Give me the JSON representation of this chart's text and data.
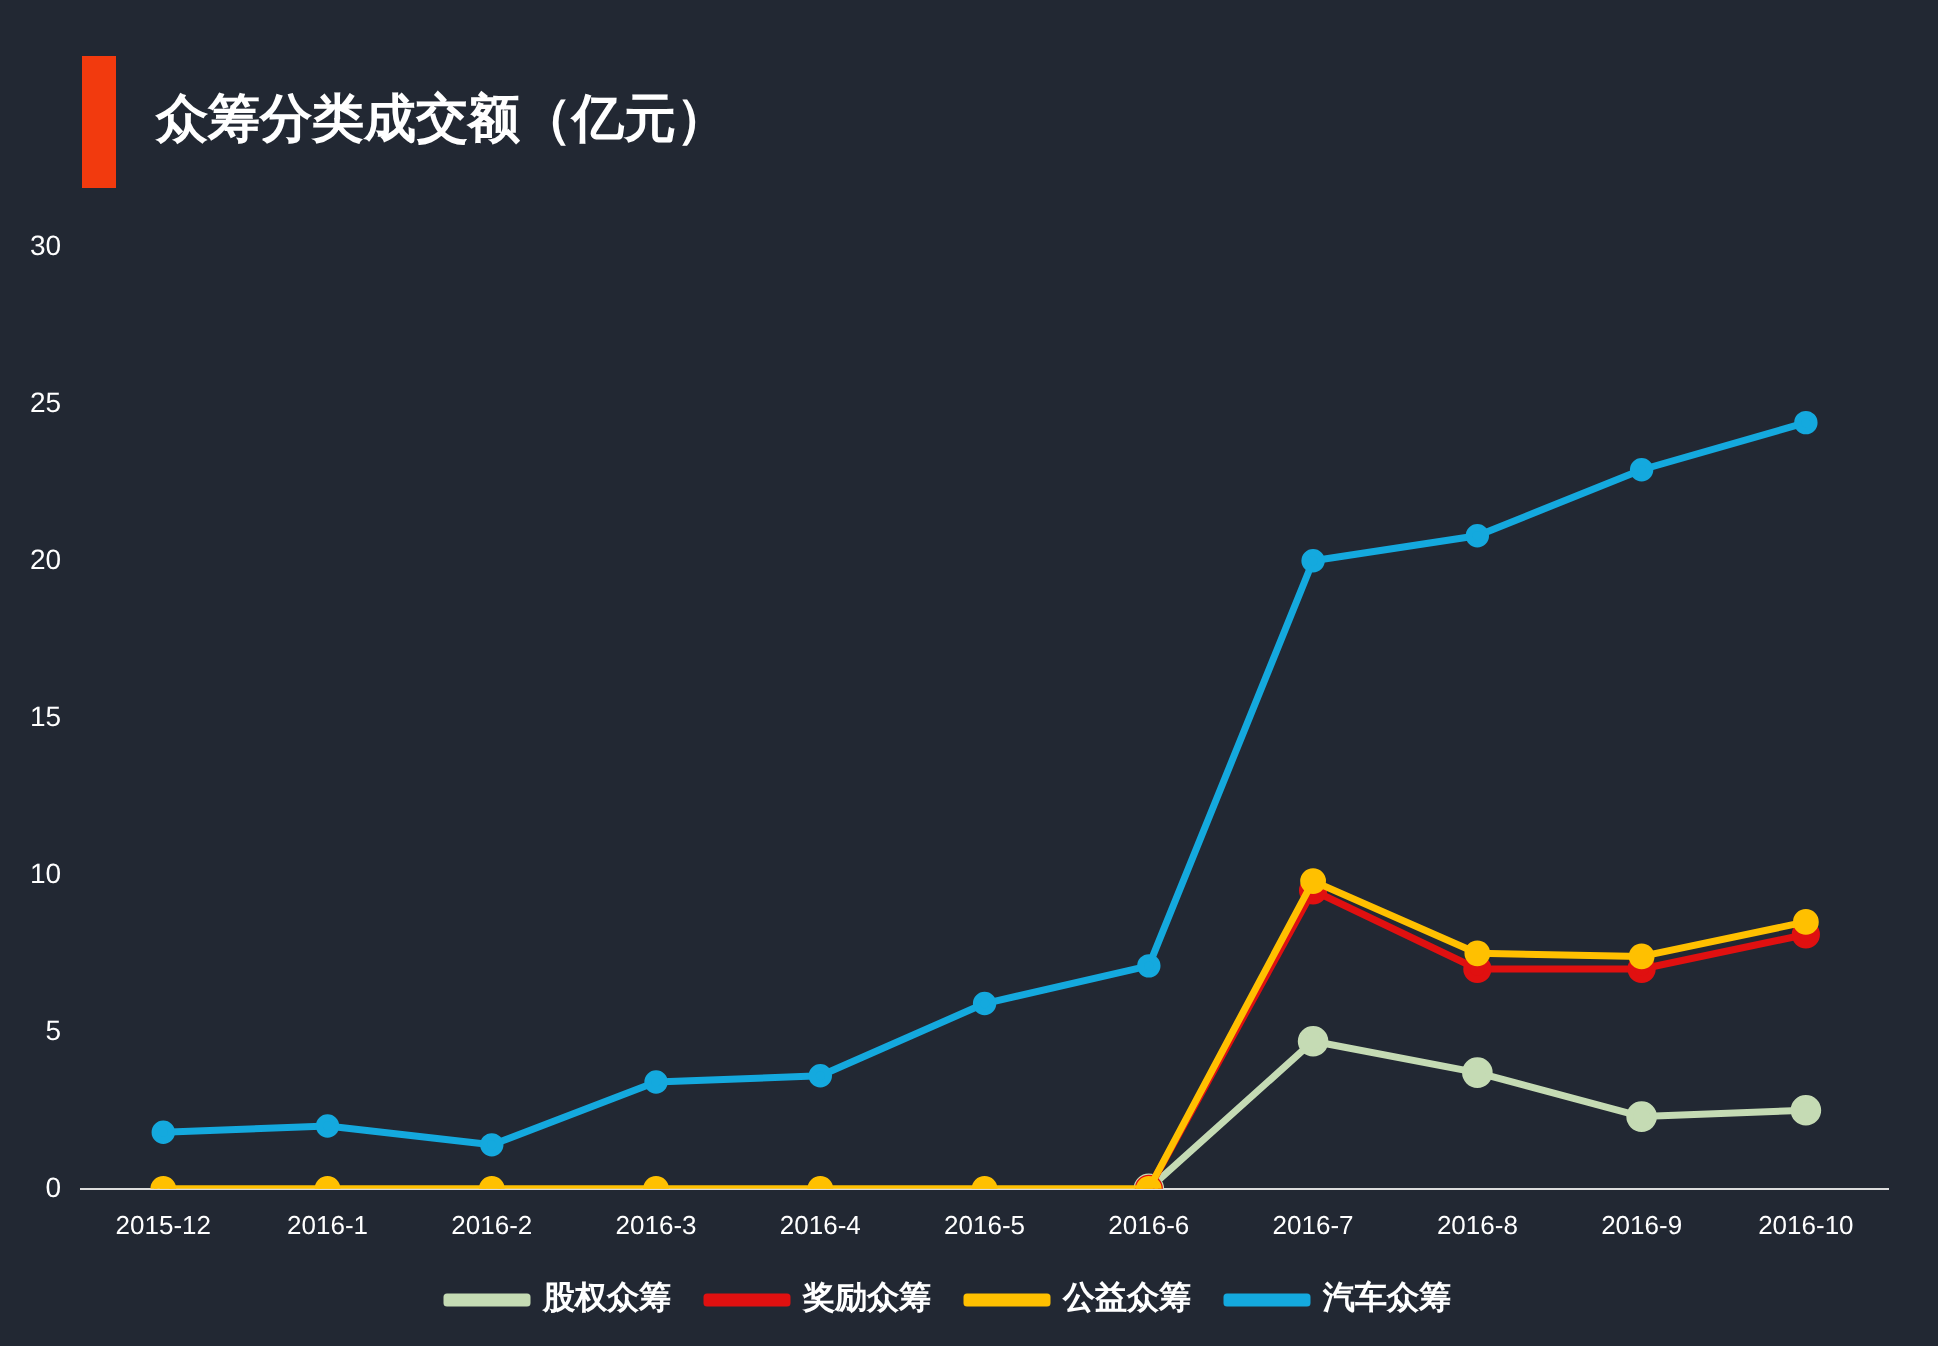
{
  "chart_data": {
    "type": "line",
    "title": "众筹分类成交额（亿元）",
    "categories": [
      "2015-12",
      "2016-1",
      "2016-2",
      "2016-3",
      "2016-4",
      "2016-5",
      "2016-6",
      "2016-7",
      "2016-8",
      "2016-9",
      "2016-10"
    ],
    "series": [
      {
        "name": "股权众筹",
        "color": "#c5dbb4",
        "values": [
          null,
          null,
          null,
          null,
          null,
          null,
          0,
          4.7,
          3.7,
          2.3,
          2.5
        ]
      },
      {
        "name": "奖励众筹",
        "color": "#e01010",
        "values": [
          null,
          null,
          null,
          null,
          null,
          null,
          0,
          9.5,
          7.0,
          7.0,
          8.1
        ]
      },
      {
        "name": "公益众筹",
        "color": "#ffc000",
        "values": [
          0,
          0,
          0,
          0,
          0,
          0,
          0,
          9.8,
          7.5,
          7.4,
          8.5
        ]
      },
      {
        "name": "汽车众筹",
        "color": "#14a9de",
        "values": [
          1.8,
          2.0,
          1.4,
          3.4,
          3.6,
          5.9,
          7.1,
          20.0,
          20.8,
          22.9,
          24.4
        ]
      }
    ],
    "ylim": [
      0,
      30
    ],
    "yticks": [
      0,
      5,
      10,
      15,
      20,
      25,
      30
    ],
    "grid": false,
    "legend": "bottom",
    "marker": "circle",
    "line_style": "solid"
  }
}
